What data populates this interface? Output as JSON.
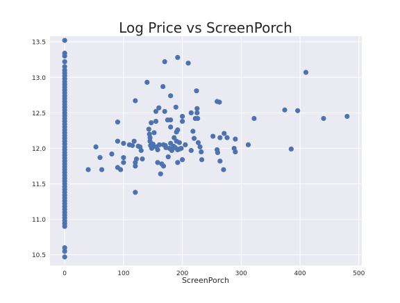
{
  "chart_data": {
    "type": "scatter",
    "title": "Log Price vs ScreenPorch",
    "xlabel": "ScreenPorch",
    "ylabel": "",
    "xlim": [
      -25,
      505
    ],
    "ylim": [
      10.35,
      13.58
    ],
    "xticks": [
      0,
      100,
      200,
      300,
      400,
      500
    ],
    "yticks": [
      10.5,
      11.0,
      11.5,
      12.0,
      12.5,
      13.0,
      13.5
    ],
    "ytick_labels": [
      "10.5",
      "11.0",
      "11.5",
      "12.0",
      "12.5",
      "13.0",
      "13.5"
    ],
    "grid": true,
    "background_color": "#EAEAF2",
    "point_color": "#4C72B0",
    "points": [
      [
        0,
        13.52
      ],
      [
        0,
        13.34
      ],
      [
        0,
        13.3
      ],
      [
        0,
        13.22
      ],
      [
        0,
        13.15
      ],
      [
        0,
        13.1
      ],
      [
        0,
        13.06
      ],
      [
        0,
        13.02
      ],
      [
        0,
        12.98
      ],
      [
        0,
        12.94
      ],
      [
        0,
        12.9
      ],
      [
        0,
        12.86
      ],
      [
        0,
        12.82
      ],
      [
        0,
        12.78
      ],
      [
        0,
        12.74
      ],
      [
        0,
        12.7
      ],
      [
        0,
        12.66
      ],
      [
        0,
        12.62
      ],
      [
        0,
        12.58
      ],
      [
        0,
        12.54
      ],
      [
        0,
        12.5
      ],
      [
        0,
        12.46
      ],
      [
        0,
        12.42
      ],
      [
        0,
        12.38
      ],
      [
        0,
        12.34
      ],
      [
        0,
        12.3
      ],
      [
        0,
        12.26
      ],
      [
        0,
        12.22
      ],
      [
        0,
        12.18
      ],
      [
        0,
        12.14
      ],
      [
        0,
        12.1
      ],
      [
        0,
        12.06
      ],
      [
        0,
        12.02
      ],
      [
        0,
        11.98
      ],
      [
        0,
        11.94
      ],
      [
        0,
        11.9
      ],
      [
        0,
        11.86
      ],
      [
        0,
        11.82
      ],
      [
        0,
        11.78
      ],
      [
        0,
        11.74
      ],
      [
        0,
        11.7
      ],
      [
        0,
        11.66
      ],
      [
        0,
        11.62
      ],
      [
        0,
        11.58
      ],
      [
        0,
        11.54
      ],
      [
        0,
        11.5
      ],
      [
        0,
        11.46
      ],
      [
        0,
        11.42
      ],
      [
        0,
        11.38
      ],
      [
        0,
        11.34
      ],
      [
        0,
        11.3
      ],
      [
        0,
        11.26
      ],
      [
        0,
        11.22
      ],
      [
        0,
        11.18
      ],
      [
        0,
        11.14
      ],
      [
        0,
        11.1
      ],
      [
        0,
        11.06
      ],
      [
        0,
        11.02
      ],
      [
        0,
        10.98
      ],
      [
        0,
        10.94
      ],
      [
        0,
        10.9
      ],
      [
        0,
        10.6
      ],
      [
        0,
        10.55
      ],
      [
        0,
        10.47
      ],
      [
        40,
        11.7
      ],
      [
        53,
        12.02
      ],
      [
        60,
        11.87
      ],
      [
        63,
        11.7
      ],
      [
        80,
        11.92
      ],
      [
        90,
        12.37
      ],
      [
        90,
        12.1
      ],
      [
        90,
        11.73
      ],
      [
        95,
        11.7
      ],
      [
        100,
        12.07
      ],
      [
        100,
        11.87
      ],
      [
        100,
        11.8
      ],
      [
        110,
        12.05
      ],
      [
        115,
        12.04
      ],
      [
        118,
        12.1
      ],
      [
        120,
        12.67
      ],
      [
        120,
        11.8
      ],
      [
        120,
        11.75
      ],
      [
        120,
        11.38
      ],
      [
        122,
        11.85
      ],
      [
        125,
        12.03
      ],
      [
        128,
        12.02
      ],
      [
        130,
        11.97
      ],
      [
        132,
        11.85
      ],
      [
        140,
        12.93
      ],
      [
        143,
        12.27
      ],
      [
        144,
        12.2
      ],
      [
        145,
        12.15
      ],
      [
        145,
        12.1
      ],
      [
        146,
        12.04
      ],
      [
        147,
        12.36
      ],
      [
        148,
        12.0
      ],
      [
        150,
        12.06
      ],
      [
        150,
        12.02
      ],
      [
        152,
        12.22
      ],
      [
        155,
        12.52
      ],
      [
        155,
        12.38
      ],
      [
        156,
        12.02
      ],
      [
        158,
        11.98
      ],
      [
        158,
        11.8
      ],
      [
        160,
        12.57
      ],
      [
        161,
        12.05
      ],
      [
        163,
        11.64
      ],
      [
        165,
        11.78
      ],
      [
        167,
        12.87
      ],
      [
        168,
        12.05
      ],
      [
        168,
        11.75
      ],
      [
        170,
        13.22
      ],
      [
        170,
        12.52
      ],
      [
        171,
        12.04
      ],
      [
        172,
        12.01
      ],
      [
        175,
        12.4
      ],
      [
        176,
        11.88
      ],
      [
        178,
        12.0
      ],
      [
        180,
        12.74
      ],
      [
        180,
        12.4
      ],
      [
        180,
        12.3
      ],
      [
        180,
        12.07
      ],
      [
        182,
        11.97
      ],
      [
        185,
        12.03
      ],
      [
        185,
        12.02
      ],
      [
        186,
        12.15
      ],
      [
        188,
        12.01
      ],
      [
        189,
        12.58
      ],
      [
        190,
        12.1
      ],
      [
        190,
        12.23
      ],
      [
        192,
        13.28
      ],
      [
        192,
        12.26
      ],
      [
        192,
        11.98
      ],
      [
        192,
        11.8
      ],
      [
        195,
        12.08
      ],
      [
        195,
        11.99
      ],
      [
        198,
        12.0
      ],
      [
        200,
        12.45
      ],
      [
        200,
        12.38
      ],
      [
        200,
        11.84
      ],
      [
        205,
        12.05
      ],
      [
        210,
        13.2
      ],
      [
        215,
        12.5
      ],
      [
        215,
        11.97
      ],
      [
        218,
        12.24
      ],
      [
        220,
        12.14
      ],
      [
        222,
        12.42
      ],
      [
        224,
        12.81
      ],
      [
        225,
        12.56
      ],
      [
        225,
        12.5
      ],
      [
        226,
        12.42
      ],
      [
        227,
        12.08
      ],
      [
        230,
        12.02
      ],
      [
        232,
        11.95
      ],
      [
        233,
        11.84
      ],
      [
        252,
        12.17
      ],
      [
        259,
        12.66
      ],
      [
        259,
        11.98
      ],
      [
        260,
        11.94
      ],
      [
        263,
        12.65
      ],
      [
        264,
        12.15
      ],
      [
        264,
        11.82
      ],
      [
        270,
        11.7
      ],
      [
        271,
        12.21
      ],
      [
        276,
        12.15
      ],
      [
        288,
        12.0
      ],
      [
        290,
        12.13
      ],
      [
        290,
        11.95
      ],
      [
        312,
        12.05
      ],
      [
        322,
        12.42
      ],
      [
        374,
        12.54
      ],
      [
        385,
        11.99
      ],
      [
        396,
        12.53
      ],
      [
        410,
        13.07
      ],
      [
        440,
        12.42
      ],
      [
        480,
        12.45
      ]
    ]
  }
}
